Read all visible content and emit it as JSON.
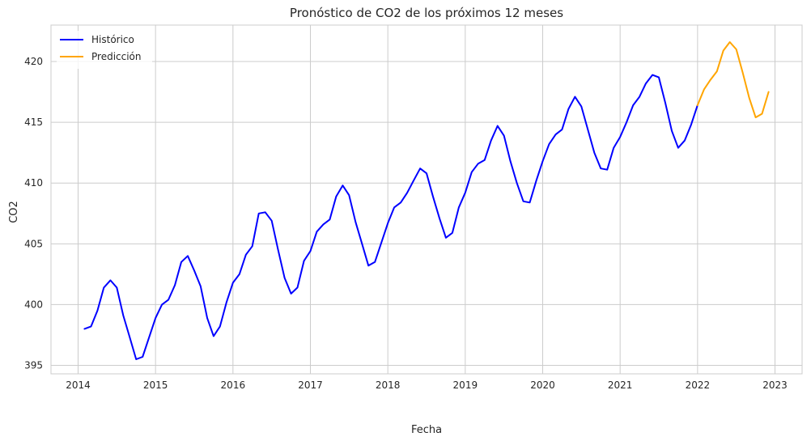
{
  "chart_data": {
    "type": "line",
    "title": "Pronóstico de CO2 de los próximos 12 meses",
    "xlabel": "Fecha",
    "ylabel": "CO2",
    "xlim": [
      2013.65,
      2023.35
    ],
    "ylim": [
      394.3,
      423.0
    ],
    "xticks": [
      2014,
      2015,
      2016,
      2017,
      2018,
      2019,
      2020,
      2021,
      2022,
      2023
    ],
    "xtick_labels": [
      "2014",
      "2015",
      "2016",
      "2017",
      "2018",
      "2019",
      "2020",
      "2021",
      "2022",
      "2023"
    ],
    "yticks": [
      395,
      400,
      405,
      410,
      415,
      420
    ],
    "ytick_labels": [
      "395",
      "400",
      "405",
      "410",
      "415",
      "420"
    ],
    "grid": true,
    "legend_position": "top-left",
    "series": [
      {
        "name": "Histórico",
        "color": "#0000ff",
        "x": [
          2014.083,
          2014.167,
          2014.25,
          2014.333,
          2014.417,
          2014.5,
          2014.583,
          2014.667,
          2014.75,
          2014.833,
          2014.917,
          2015.0,
          2015.083,
          2015.167,
          2015.25,
          2015.333,
          2015.417,
          2015.5,
          2015.583,
          2015.667,
          2015.75,
          2015.833,
          2015.917,
          2016.0,
          2016.083,
          2016.167,
          2016.25,
          2016.333,
          2016.417,
          2016.5,
          2016.583,
          2016.667,
          2016.75,
          2016.833,
          2016.917,
          2017.0,
          2017.083,
          2017.167,
          2017.25,
          2017.333,
          2017.417,
          2017.5,
          2017.583,
          2017.667,
          2017.75,
          2017.833,
          2017.917,
          2018.0,
          2018.083,
          2018.167,
          2018.25,
          2018.333,
          2018.417,
          2018.5,
          2018.583,
          2018.667,
          2018.75,
          2018.833,
          2018.917,
          2019.0,
          2019.083,
          2019.167,
          2019.25,
          2019.333,
          2019.417,
          2019.5,
          2019.583,
          2019.667,
          2019.75,
          2019.833,
          2019.917,
          2020.0,
          2020.083,
          2020.167,
          2020.25,
          2020.333,
          2020.417,
          2020.5,
          2020.583,
          2020.667,
          2020.75,
          2020.833,
          2020.917,
          2021.0,
          2021.083,
          2021.167,
          2021.25,
          2021.333,
          2021.417,
          2021.5,
          2021.583,
          2021.667,
          2021.75,
          2021.833,
          2021.917,
          2022.0
        ],
        "values": [
          398.0,
          398.2,
          399.5,
          401.4,
          402.0,
          401.4,
          399.1,
          397.3,
          395.5,
          395.7,
          397.3,
          398.9,
          400.0,
          400.4,
          401.6,
          403.5,
          404.0,
          402.8,
          401.5,
          398.9,
          397.4,
          398.2,
          400.2,
          401.8,
          402.5,
          404.1,
          404.8,
          407.5,
          407.6,
          406.9,
          404.5,
          402.2,
          400.9,
          401.4,
          403.6,
          404.4,
          406.0,
          406.6,
          407.0,
          408.9,
          409.8,
          409.0,
          406.8,
          405.0,
          403.2,
          403.5,
          405.1,
          406.7,
          408.0,
          408.4,
          409.2,
          410.2,
          411.2,
          410.8,
          408.9,
          407.1,
          405.5,
          405.9,
          408.0,
          409.2,
          410.9,
          411.6,
          411.9,
          413.5,
          414.7,
          413.9,
          411.8,
          410.0,
          408.5,
          408.4,
          410.2,
          411.8,
          413.2,
          414.0,
          414.4,
          416.1,
          417.1,
          416.3,
          414.4,
          412.5,
          411.2,
          411.1,
          412.9,
          413.8,
          415.0,
          416.4,
          417.1,
          418.2,
          418.9,
          418.7,
          416.6,
          414.3,
          412.9,
          413.5,
          414.8,
          416.4
        ]
      },
      {
        "name": "Predicción",
        "color": "#ffa500",
        "x": [
          2022.0,
          2022.083,
          2022.167,
          2022.25,
          2022.333,
          2022.417,
          2022.5,
          2022.583,
          2022.667,
          2022.75,
          2022.833,
          2022.917
        ],
        "values": [
          416.4,
          417.7,
          418.5,
          419.2,
          420.9,
          421.6,
          421.0,
          419.1,
          417.0,
          415.4,
          415.7,
          417.5
        ]
      }
    ]
  }
}
